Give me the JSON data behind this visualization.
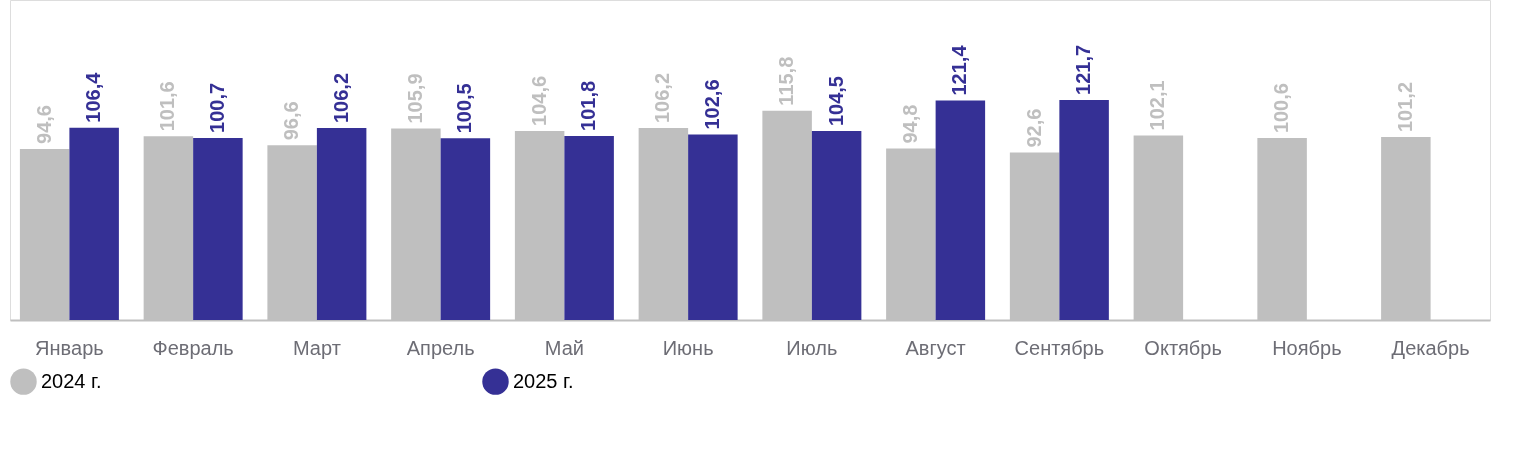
{
  "chart_data": {
    "type": "bar",
    "categories": [
      "Январь",
      "Февраль",
      "Март",
      "Апрель",
      "Май",
      "Июнь",
      "Июль",
      "Август",
      "Сентябрь",
      "Октябрь",
      "Ноябрь",
      "Декабрь"
    ],
    "series": [
      {
        "name": "2024 г.",
        "color": "#bfbfbf",
        "values": [
          94.6,
          101.6,
          96.6,
          105.9,
          104.6,
          106.2,
          115.8,
          94.8,
          92.6,
          102.1,
          100.6,
          101.2
        ],
        "value_labels": [
          "94,6",
          "101,6",
          "96,6",
          "105,9",
          "104,6",
          "106,2",
          "115,8",
          "94,8",
          "92,6",
          "102,1",
          "100,6",
          "101,2"
        ]
      },
      {
        "name": "2025 г.",
        "color": "#353095",
        "values": [
          106.4,
          100.7,
          106.2,
          100.5,
          101.8,
          102.6,
          104.5,
          121.4,
          121.7,
          null,
          null,
          null
        ],
        "value_labels": [
          "106,4",
          "100,7",
          "106,2",
          "100,5",
          "101,8",
          "102,6",
          "104,5",
          "121,4",
          "121,7",
          null,
          null,
          null
        ]
      }
    ],
    "ylim": [
      0,
      177
    ],
    "tick_labels": "x",
    "grid": false,
    "legend": "bottom left"
  }
}
